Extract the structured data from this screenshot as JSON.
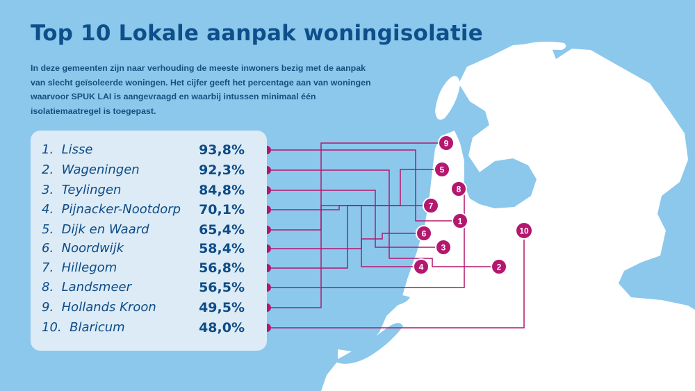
{
  "title": "Top 10 Lokale aanpak woningisolatie",
  "intro": "In deze gemeenten zijn naar verhouding de meeste inwoners bezig met de aanpak van slecht geïsoleerde woningen. Het cijfer geeft het percentage aan van woningen waarvoor SPUK LAI is aangevraagd en waarbij intussen minimaal één isolatiemaatregel is toegepast.",
  "ranking": [
    {
      "rank": "1.",
      "name": "Lisse",
      "pct": "93,8%",
      "marker": "1"
    },
    {
      "rank": "2.",
      "name": "Wageningen",
      "pct": "92,3%",
      "marker": "2"
    },
    {
      "rank": "3.",
      "name": "Teylingen",
      "pct": "84,8%",
      "marker": "3"
    },
    {
      "rank": "4.",
      "name": "Pijnacker-Nootdorp",
      "pct": "70,1%",
      "marker": "4"
    },
    {
      "rank": "5.",
      "name": "Dijk en Waard",
      "pct": "65,4%",
      "marker": "5"
    },
    {
      "rank": "6.",
      "name": "Noordwijk",
      "pct": "58,4%",
      "marker": "6"
    },
    {
      "rank": "7.",
      "name": "Hillegom",
      "pct": "56,8%",
      "marker": "7"
    },
    {
      "rank": "8.",
      "name": "Landsmeer",
      "pct": "56,5%",
      "marker": "8"
    },
    {
      "rank": "9.",
      "name": "Hollands Kroon",
      "pct": "49,5%",
      "marker": "9"
    },
    {
      "rank": "10.",
      "name": "Blaricum",
      "pct": "48,0%",
      "marker": "10"
    }
  ],
  "colors": {
    "background": "#8cc8ec",
    "land": "#ffffff",
    "panel": "#dcebf6",
    "title": "#0d4f8a",
    "text": "#0e4c86",
    "connector": "#b3176e"
  }
}
